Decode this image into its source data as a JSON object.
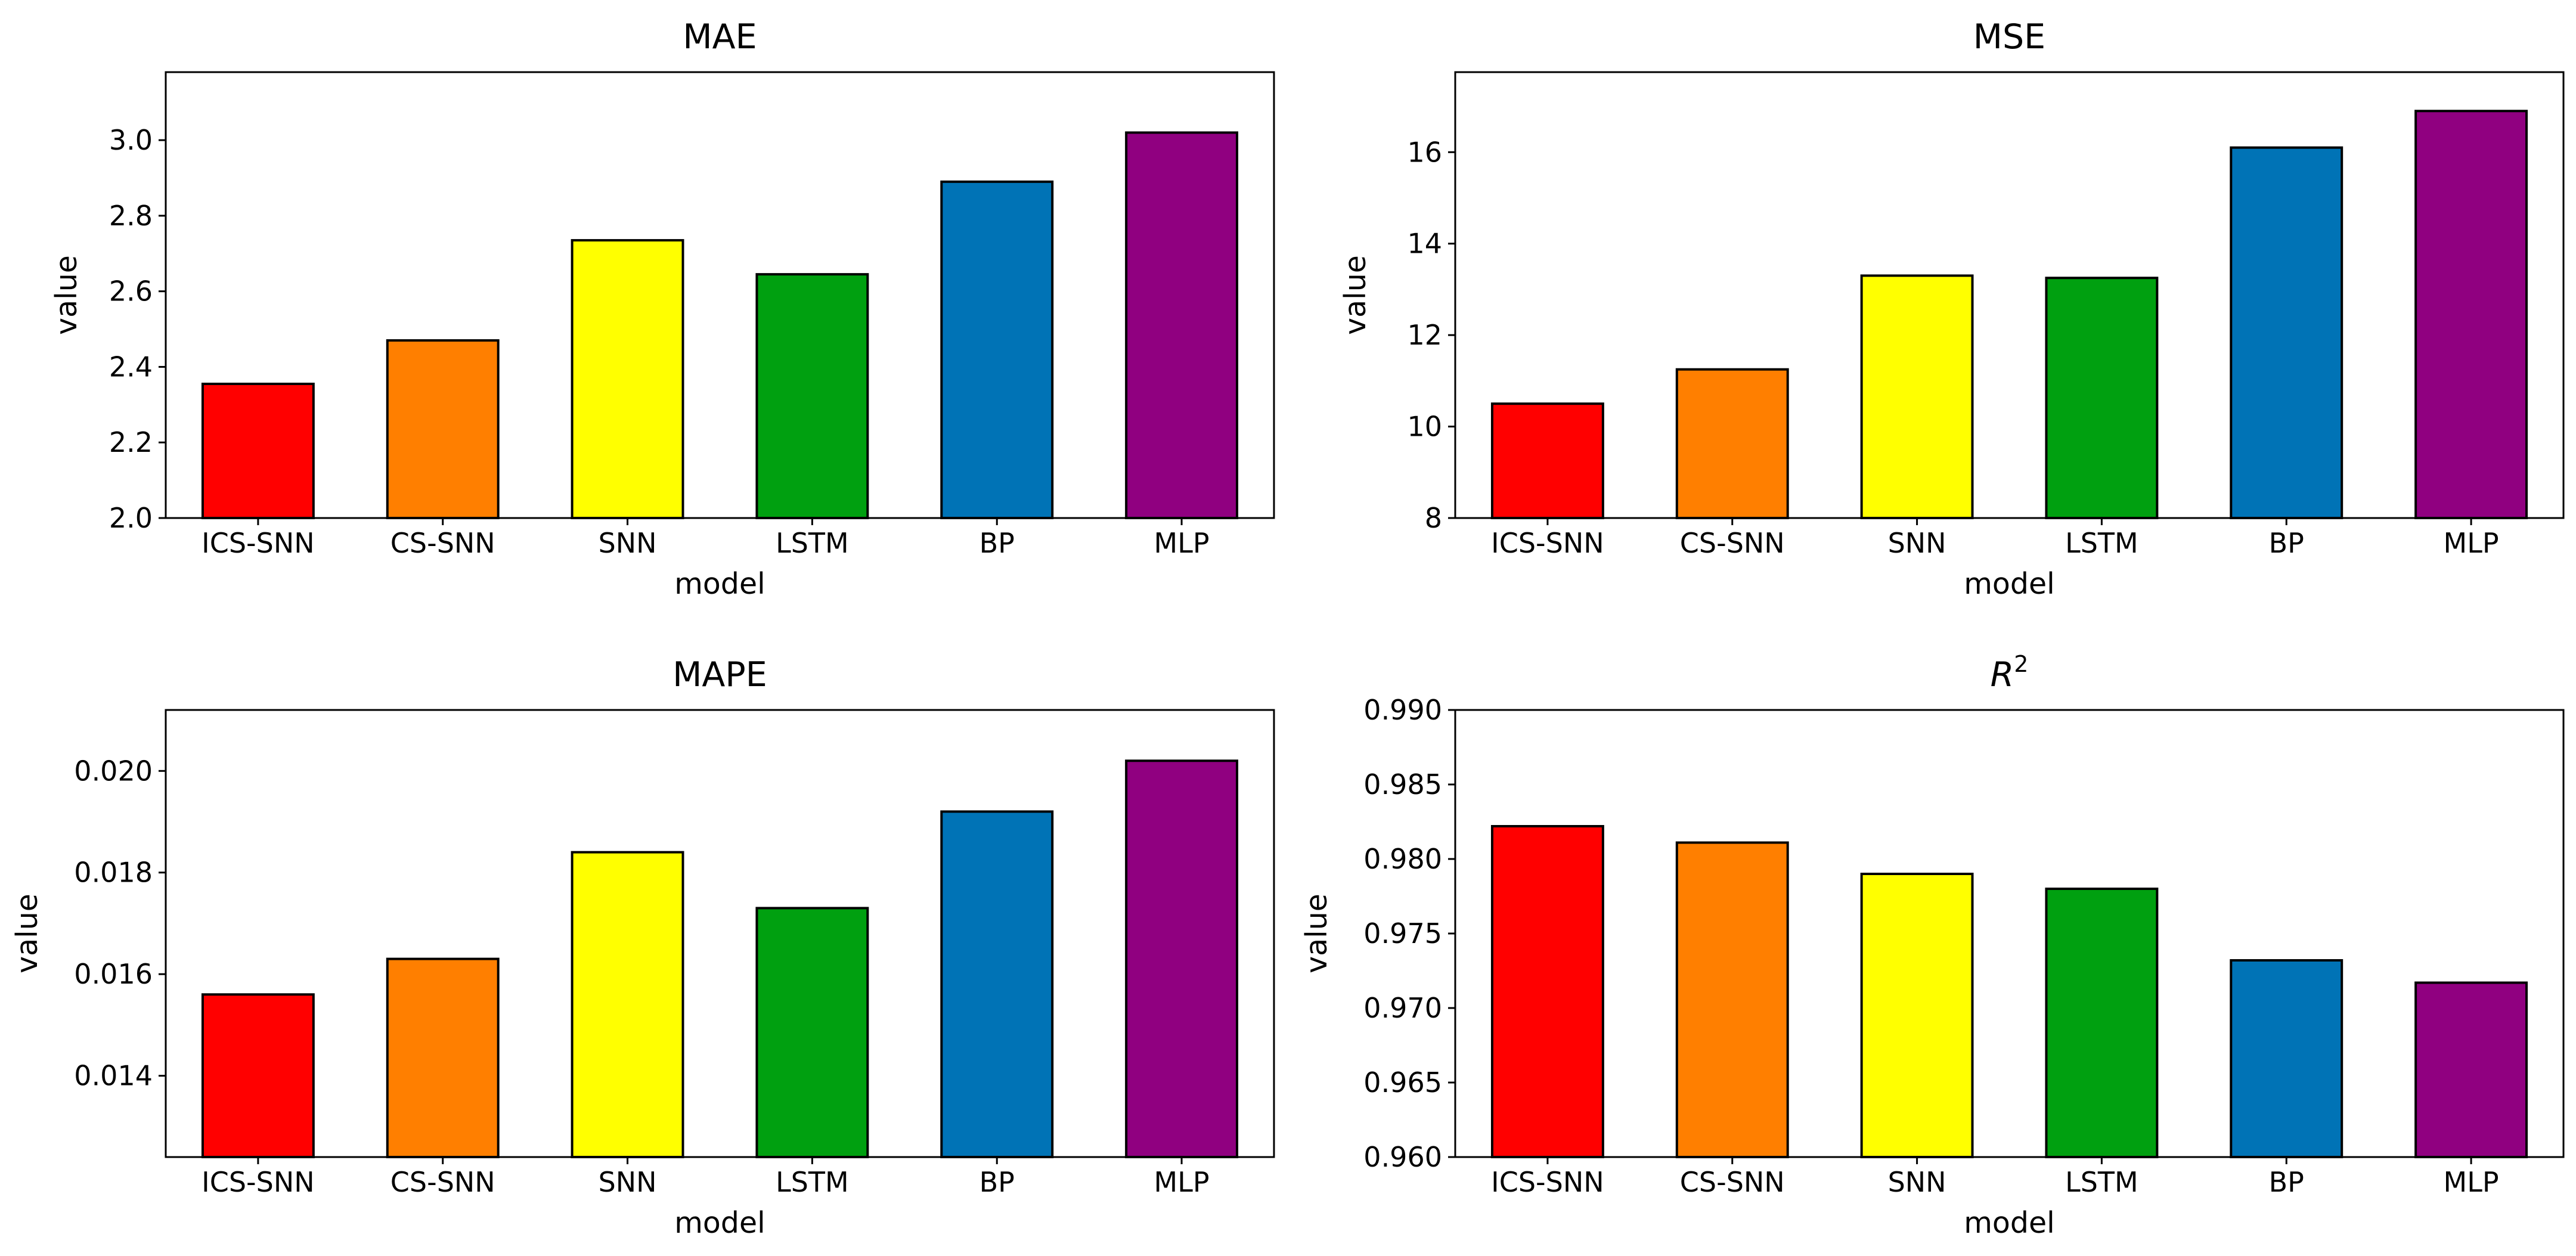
{
  "colors": [
    "#ff0000",
    "#ff7f00",
    "#ffff00",
    "#00a010",
    "#0073b6",
    "#900080"
  ],
  "chart_data": [
    {
      "type": "bar",
      "title": "MAE",
      "title_math": false,
      "xlabel": "model",
      "ylabel": "value",
      "categories": [
        "ICS-SNN",
        "CS-SNN",
        "SNN",
        "LSTM",
        "BP",
        "MLP"
      ],
      "values": [
        2.355,
        2.47,
        2.735,
        2.645,
        2.89,
        3.02
      ],
      "ylim": [
        2.0,
        3.18
      ],
      "yticks": [
        2.0,
        2.2,
        2.4,
        2.6,
        2.8,
        3.0
      ],
      "ytick_labels": [
        "2.0",
        "2.2",
        "2.4",
        "2.6",
        "2.8",
        "3.0"
      ]
    },
    {
      "type": "bar",
      "title": "MSE",
      "title_math": false,
      "xlabel": "model",
      "ylabel": "value",
      "categories": [
        "ICS-SNN",
        "CS-SNN",
        "SNN",
        "LSTM",
        "BP",
        "MLP"
      ],
      "values": [
        10.5,
        11.25,
        13.3,
        13.25,
        16.1,
        16.9
      ],
      "ylim": [
        8.0,
        17.75
      ],
      "yticks": [
        8,
        10,
        12,
        14,
        16
      ],
      "ytick_labels": [
        "8",
        "10",
        "12",
        "14",
        "16"
      ]
    },
    {
      "type": "bar",
      "title": "MAPE",
      "title_math": false,
      "xlabel": "model",
      "ylabel": "value",
      "categories": [
        "ICS-SNN",
        "CS-SNN",
        "SNN",
        "LSTM",
        "BP",
        "MLP"
      ],
      "values": [
        0.0156,
        0.0163,
        0.0184,
        0.0173,
        0.0192,
        0.0202
      ],
      "ylim": [
        0.0124,
        0.0212
      ],
      "yticks": [
        0.014,
        0.016,
        0.018,
        0.02
      ],
      "ytick_labels": [
        "0.014",
        "0.016",
        "0.018",
        "0.020"
      ]
    },
    {
      "type": "bar",
      "title": "R",
      "title_sup": "2",
      "title_math": true,
      "xlabel": "model",
      "ylabel": "value",
      "categories": [
        "ICS-SNN",
        "CS-SNN",
        "SNN",
        "LSTM",
        "BP",
        "MLP"
      ],
      "values": [
        0.9822,
        0.9811,
        0.979,
        0.978,
        0.9732,
        0.9717
      ],
      "ylim": [
        0.96,
        0.99
      ],
      "yticks": [
        0.96,
        0.965,
        0.97,
        0.975,
        0.98,
        0.985,
        0.99
      ],
      "ytick_labels": [
        "0.960",
        "0.965",
        "0.970",
        "0.975",
        "0.980",
        "0.985",
        "0.990"
      ]
    }
  ]
}
